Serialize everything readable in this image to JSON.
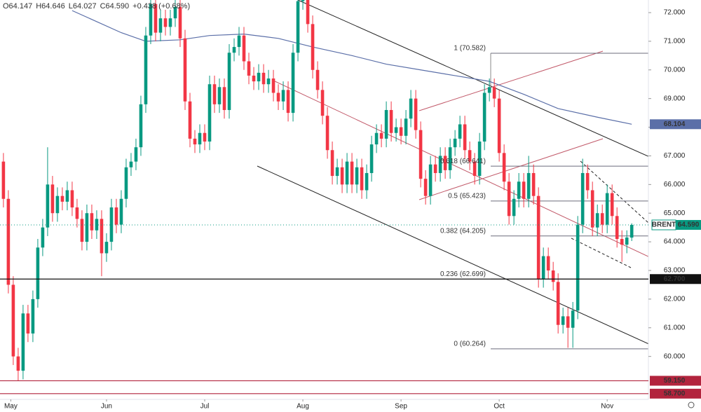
{
  "chart_data": {
    "type": "candlestick",
    "header": [
      "O64.147",
      "H64.646",
      "L64.027",
      "C64.590",
      "+0.438 (+0.68%)"
    ],
    "open": [
      66.8,
      65.5,
      62.5,
      60.0,
      59.5,
      61.5,
      60.8,
      62.0,
      63.8,
      64.5,
      66.0,
      65.0,
      65.6,
      65.4,
      65.8,
      65.2,
      64.8,
      64.0,
      65.0,
      64.4,
      64.8,
      63.6,
      64.0,
      65.2,
      64.6,
      65.5,
      66.6,
      66.8,
      67.3,
      68.8,
      71.2,
      72.3,
      71.3,
      71.8,
      71.5,
      71.8,
      72.2,
      71.1,
      68.9,
      67.6,
      67.4,
      67.8,
      67.5,
      69.5,
      68.8,
      69.4,
      68.6,
      70.6,
      70.8,
      71.2,
      70.3,
      69.8,
      69.6,
      69.9,
      69.5,
      69.7,
      69.2,
      68.9,
      69.3,
      68.5,
      70.6,
      72.4,
      72.6,
      71.6,
      70.0,
      69.3,
      68.4,
      67.2,
      66.3,
      66.6,
      66.0,
      66.8,
      66.0,
      66.6,
      65.8,
      66.4,
      67.4,
      67.8,
      67.6,
      68.6,
      67.8,
      68.0,
      67.7,
      68.3,
      69.0,
      67.9,
      66.2,
      65.6,
      66.7,
      66.4,
      67.0,
      66.5,
      67.3,
      67.6,
      68.1,
      67.2,
      66.8,
      66.3,
      67.5,
      69.2,
      69.4,
      69.0,
      67.1,
      66.1,
      64.9,
      65.5,
      66.1,
      65.5,
      66.4,
      65.6,
      62.7,
      63.5,
      63.0,
      62.6,
      61.1,
      61.4,
      61.0,
      61.6,
      64.6,
      66.4,
      65.8,
      64.5,
      65.0,
      64.6,
      65.7,
      64.9,
      64.1,
      63.9,
      64.147
    ],
    "high": [
      67.1,
      65.8,
      62.8,
      60.3,
      61.8,
      61.8,
      62.3,
      64.1,
      64.8,
      67.3,
      66.3,
      65.9,
      65.9,
      66.1,
      66.1,
      65.5,
      65.1,
      65.3,
      65.3,
      65.1,
      65.1,
      64.3,
      65.5,
      65.5,
      65.8,
      66.9,
      67.1,
      67.6,
      69.1,
      71.5,
      72.6,
      72.6,
      72.1,
      72.1,
      72.1,
      72.5,
      72.5,
      71.4,
      69.2,
      67.9,
      68.1,
      68.1,
      69.8,
      69.8,
      69.7,
      69.7,
      70.9,
      71.1,
      71.5,
      71.5,
      70.6,
      70.1,
      70.2,
      70.2,
      70.0,
      70.0,
      69.5,
      69.6,
      69.6,
      70.9,
      72.7,
      72.9,
      72.9,
      71.9,
      70.3,
      69.6,
      68.7,
      67.5,
      66.9,
      66.9,
      67.1,
      67.1,
      66.9,
      66.9,
      66.7,
      67.7,
      68.1,
      68.1,
      68.9,
      68.9,
      68.3,
      68.3,
      68.6,
      69.3,
      69.3,
      68.2,
      66.5,
      67.0,
      67.0,
      67.3,
      67.3,
      67.6,
      67.9,
      68.4,
      68.4,
      67.5,
      67.1,
      67.8,
      69.5,
      69.7,
      69.7,
      69.3,
      67.4,
      66.4,
      65.8,
      66.4,
      66.4,
      67.0,
      66.7,
      65.9,
      63.8,
      63.8,
      63.3,
      62.9,
      61.7,
      61.7,
      61.9,
      64.9,
      66.9,
      66.7,
      66.1,
      65.3,
      65.3,
      66.0,
      66.0,
      65.2,
      64.4,
      64.4,
      64.646
    ],
    "low": [
      65.2,
      62.2,
      59.7,
      59.15,
      59.2,
      60.5,
      60.5,
      61.7,
      63.5,
      64.2,
      64.7,
      64.7,
      65.1,
      65.1,
      64.9,
      64.5,
      63.7,
      63.7,
      64.1,
      64.1,
      62.8,
      63.3,
      63.7,
      64.3,
      64.3,
      65.2,
      66.3,
      66.5,
      67.0,
      68.5,
      70.9,
      71.0,
      71.0,
      71.2,
      71.2,
      71.5,
      70.8,
      68.6,
      67.3,
      67.1,
      67.1,
      67.2,
      67.2,
      68.5,
      68.5,
      68.3,
      68.3,
      70.3,
      70.5,
      70.0,
      69.5,
      69.3,
      69.3,
      69.2,
      69.2,
      68.9,
      68.6,
      68.6,
      68.2,
      68.2,
      70.3,
      72.1,
      71.3,
      69.7,
      69.0,
      68.1,
      66.9,
      66.0,
      66.0,
      65.7,
      65.7,
      65.7,
      65.7,
      65.5,
      65.5,
      66.1,
      67.1,
      67.3,
      67.3,
      67.5,
      67.5,
      67.4,
      67.4,
      68.0,
      67.6,
      65.9,
      65.3,
      65.3,
      66.1,
      66.1,
      66.2,
      66.2,
      67.0,
      67.3,
      66.9,
      66.5,
      66.0,
      66.0,
      67.2,
      68.9,
      68.7,
      66.8,
      65.8,
      64.6,
      64.6,
      65.2,
      65.2,
      65.2,
      65.3,
      62.4,
      62.4,
      62.7,
      62.3,
      60.8,
      60.8,
      60.3,
      60.3,
      61.3,
      64.3,
      65.5,
      64.2,
      64.2,
      64.3,
      64.3,
      64.6,
      63.8,
      63.3,
      63.6,
      64.027
    ],
    "close": [
      65.5,
      62.5,
      60.0,
      59.5,
      61.5,
      60.8,
      62.0,
      63.8,
      64.5,
      66.0,
      65.0,
      65.6,
      65.4,
      65.8,
      65.2,
      64.8,
      64.0,
      65.0,
      64.4,
      64.8,
      63.6,
      64.0,
      65.2,
      64.6,
      65.5,
      66.6,
      66.8,
      67.3,
      68.8,
      71.2,
      72.3,
      71.3,
      71.8,
      71.5,
      71.8,
      72.2,
      71.1,
      68.9,
      67.6,
      67.4,
      67.8,
      67.5,
      69.5,
      68.8,
      69.4,
      68.6,
      70.6,
      70.8,
      71.2,
      70.3,
      69.8,
      69.6,
      69.9,
      69.5,
      69.7,
      69.2,
      68.9,
      69.3,
      68.5,
      70.6,
      72.4,
      72.6,
      71.6,
      70.0,
      69.3,
      68.4,
      67.2,
      66.3,
      66.6,
      66.0,
      66.8,
      66.0,
      66.6,
      65.8,
      66.4,
      67.4,
      67.8,
      67.6,
      68.6,
      67.8,
      68.0,
      67.7,
      68.3,
      69.0,
      67.9,
      66.2,
      65.6,
      66.7,
      66.4,
      67.0,
      66.5,
      67.3,
      67.6,
      68.1,
      67.2,
      66.8,
      66.3,
      67.5,
      69.2,
      69.4,
      69.0,
      67.1,
      66.1,
      64.9,
      65.5,
      66.1,
      65.5,
      66.4,
      65.6,
      62.7,
      63.5,
      63.0,
      62.6,
      61.1,
      61.4,
      61.0,
      61.6,
      64.6,
      66.4,
      65.8,
      64.5,
      65.0,
      64.6,
      65.7,
      64.9,
      64.1,
      63.9,
      64.15,
      64.59
    ],
    "up_color": "#089981",
    "down_color": "#f23645",
    "moving_average": {
      "color": "#5b6fa8",
      "x": [
        14,
        24,
        29,
        36,
        42,
        49,
        56,
        63,
        71,
        78,
        85,
        92,
        99,
        106,
        113,
        121,
        128
      ],
      "values": [
        72.07,
        71.3,
        71.0,
        71.05,
        71.2,
        71.25,
        71.1,
        70.8,
        70.5,
        70.2,
        70.0,
        69.8,
        69.6,
        69.15,
        68.65,
        68.35,
        68.104
      ]
    },
    "price_tag": {
      "name": "BRENT",
      "value": 64.59,
      "label": "64.590",
      "color": "#089981"
    },
    "levels": [
      {
        "value": 62.7,
        "label": "62.700",
        "color": "#111111"
      },
      {
        "value": 59.15,
        "label": "59.150",
        "color": "#b2243d"
      },
      {
        "value": 58.7,
        "label": "58.700",
        "color": "#b2243d"
      }
    ],
    "fib_levels": [
      {
        "value": 70.582,
        "label": "1 (70.582)"
      },
      {
        "value": 66.641,
        "label": "0.618 (66.641)"
      },
      {
        "value": 65.423,
        "label": "0.5 (65.423)"
      },
      {
        "value": 64.205,
        "label": "0.382 (64.205)"
      },
      {
        "value": 62.699,
        "label": "0.236 (62.699)"
      },
      {
        "value": 60.264,
        "label": "0 (60.264)"
      }
    ],
    "xlim": [
      -0.7,
      131.4
    ],
    "xticks": [
      {
        "value": 1.5,
        "label": "May"
      },
      {
        "value": 21,
        "label": "Jun"
      },
      {
        "value": 41,
        "label": "Jul"
      },
      {
        "value": 61,
        "label": "Aug"
      },
      {
        "value": 81,
        "label": "Sep"
      },
      {
        "value": 101,
        "label": "Oct"
      },
      {
        "value": 123,
        "label": "Nov"
      }
    ],
    "ylim": [
      58.5,
      72.44
    ],
    "yticks": [
      {
        "value": 60,
        "label": "60.000"
      },
      {
        "value": 61,
        "label": "61.000"
      },
      {
        "value": 62,
        "label": "62.000"
      },
      {
        "value": 63,
        "label": "63.000"
      },
      {
        "value": 64,
        "label": "64.000"
      },
      {
        "value": 65,
        "label": "65.000"
      },
      {
        "value": 66,
        "label": "66.000"
      },
      {
        "value": 67,
        "label": "67.000"
      },
      {
        "value": 68,
        "label": "68.000"
      },
      {
        "value": 69,
        "label": "69.000"
      },
      {
        "value": 70,
        "label": "70.000"
      },
      {
        "value": 71,
        "label": "71.000"
      },
      {
        "value": 72,
        "label": "72.000"
      }
    ],
    "grid": false
  }
}
